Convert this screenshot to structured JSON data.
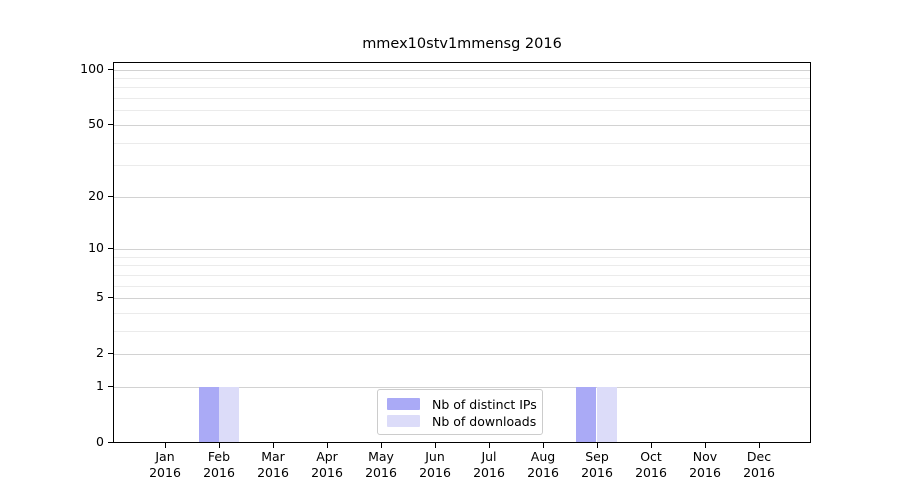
{
  "title": "mmex10stv1mmensg 2016",
  "colors": {
    "distinct_ips": "#aaaaf6",
    "downloads": "#dcdcf9",
    "axis": "#000000",
    "grid_major": "#d2d2d2",
    "grid_minor": "#ebebeb",
    "legend_border": "#cccccc",
    "background": "#ffffff"
  },
  "chart_data": {
    "type": "bar",
    "title": "mmex10stv1mmensg 2016",
    "categories": [
      "Jan 2016",
      "Feb 2016",
      "Mar 2016",
      "Apr 2016",
      "May 2016",
      "Jun 2016",
      "Jul 2016",
      "Aug 2016",
      "Sep 2016",
      "Oct 2016",
      "Nov 2016",
      "Dec 2016"
    ],
    "series": [
      {
        "name": "Nb of distinct IPs",
        "color": "#aaaaf6",
        "values": [
          0,
          1,
          0,
          0,
          0,
          0,
          0,
          0,
          1,
          0,
          0,
          0
        ]
      },
      {
        "name": "Nb of downloads",
        "color": "#dcdcf9",
        "values": [
          0,
          1,
          0,
          0,
          0,
          0,
          0,
          0,
          1,
          0,
          0,
          0
        ]
      }
    ],
    "xlabel": "",
    "ylabel": "",
    "yscale": "log1p",
    "ylim": [
      0,
      110
    ],
    "y_major_ticks": [
      0,
      1,
      2,
      5,
      10,
      20,
      50,
      100
    ],
    "y_minor_ticks": [
      3,
      4,
      6,
      7,
      8,
      9,
      30,
      40,
      60,
      70,
      80,
      90
    ],
    "grid": true,
    "legend_position": "lower center"
  },
  "legend": {
    "items": [
      {
        "label": "Nb of distinct IPs"
      },
      {
        "label": "Nb of downloads"
      }
    ]
  }
}
